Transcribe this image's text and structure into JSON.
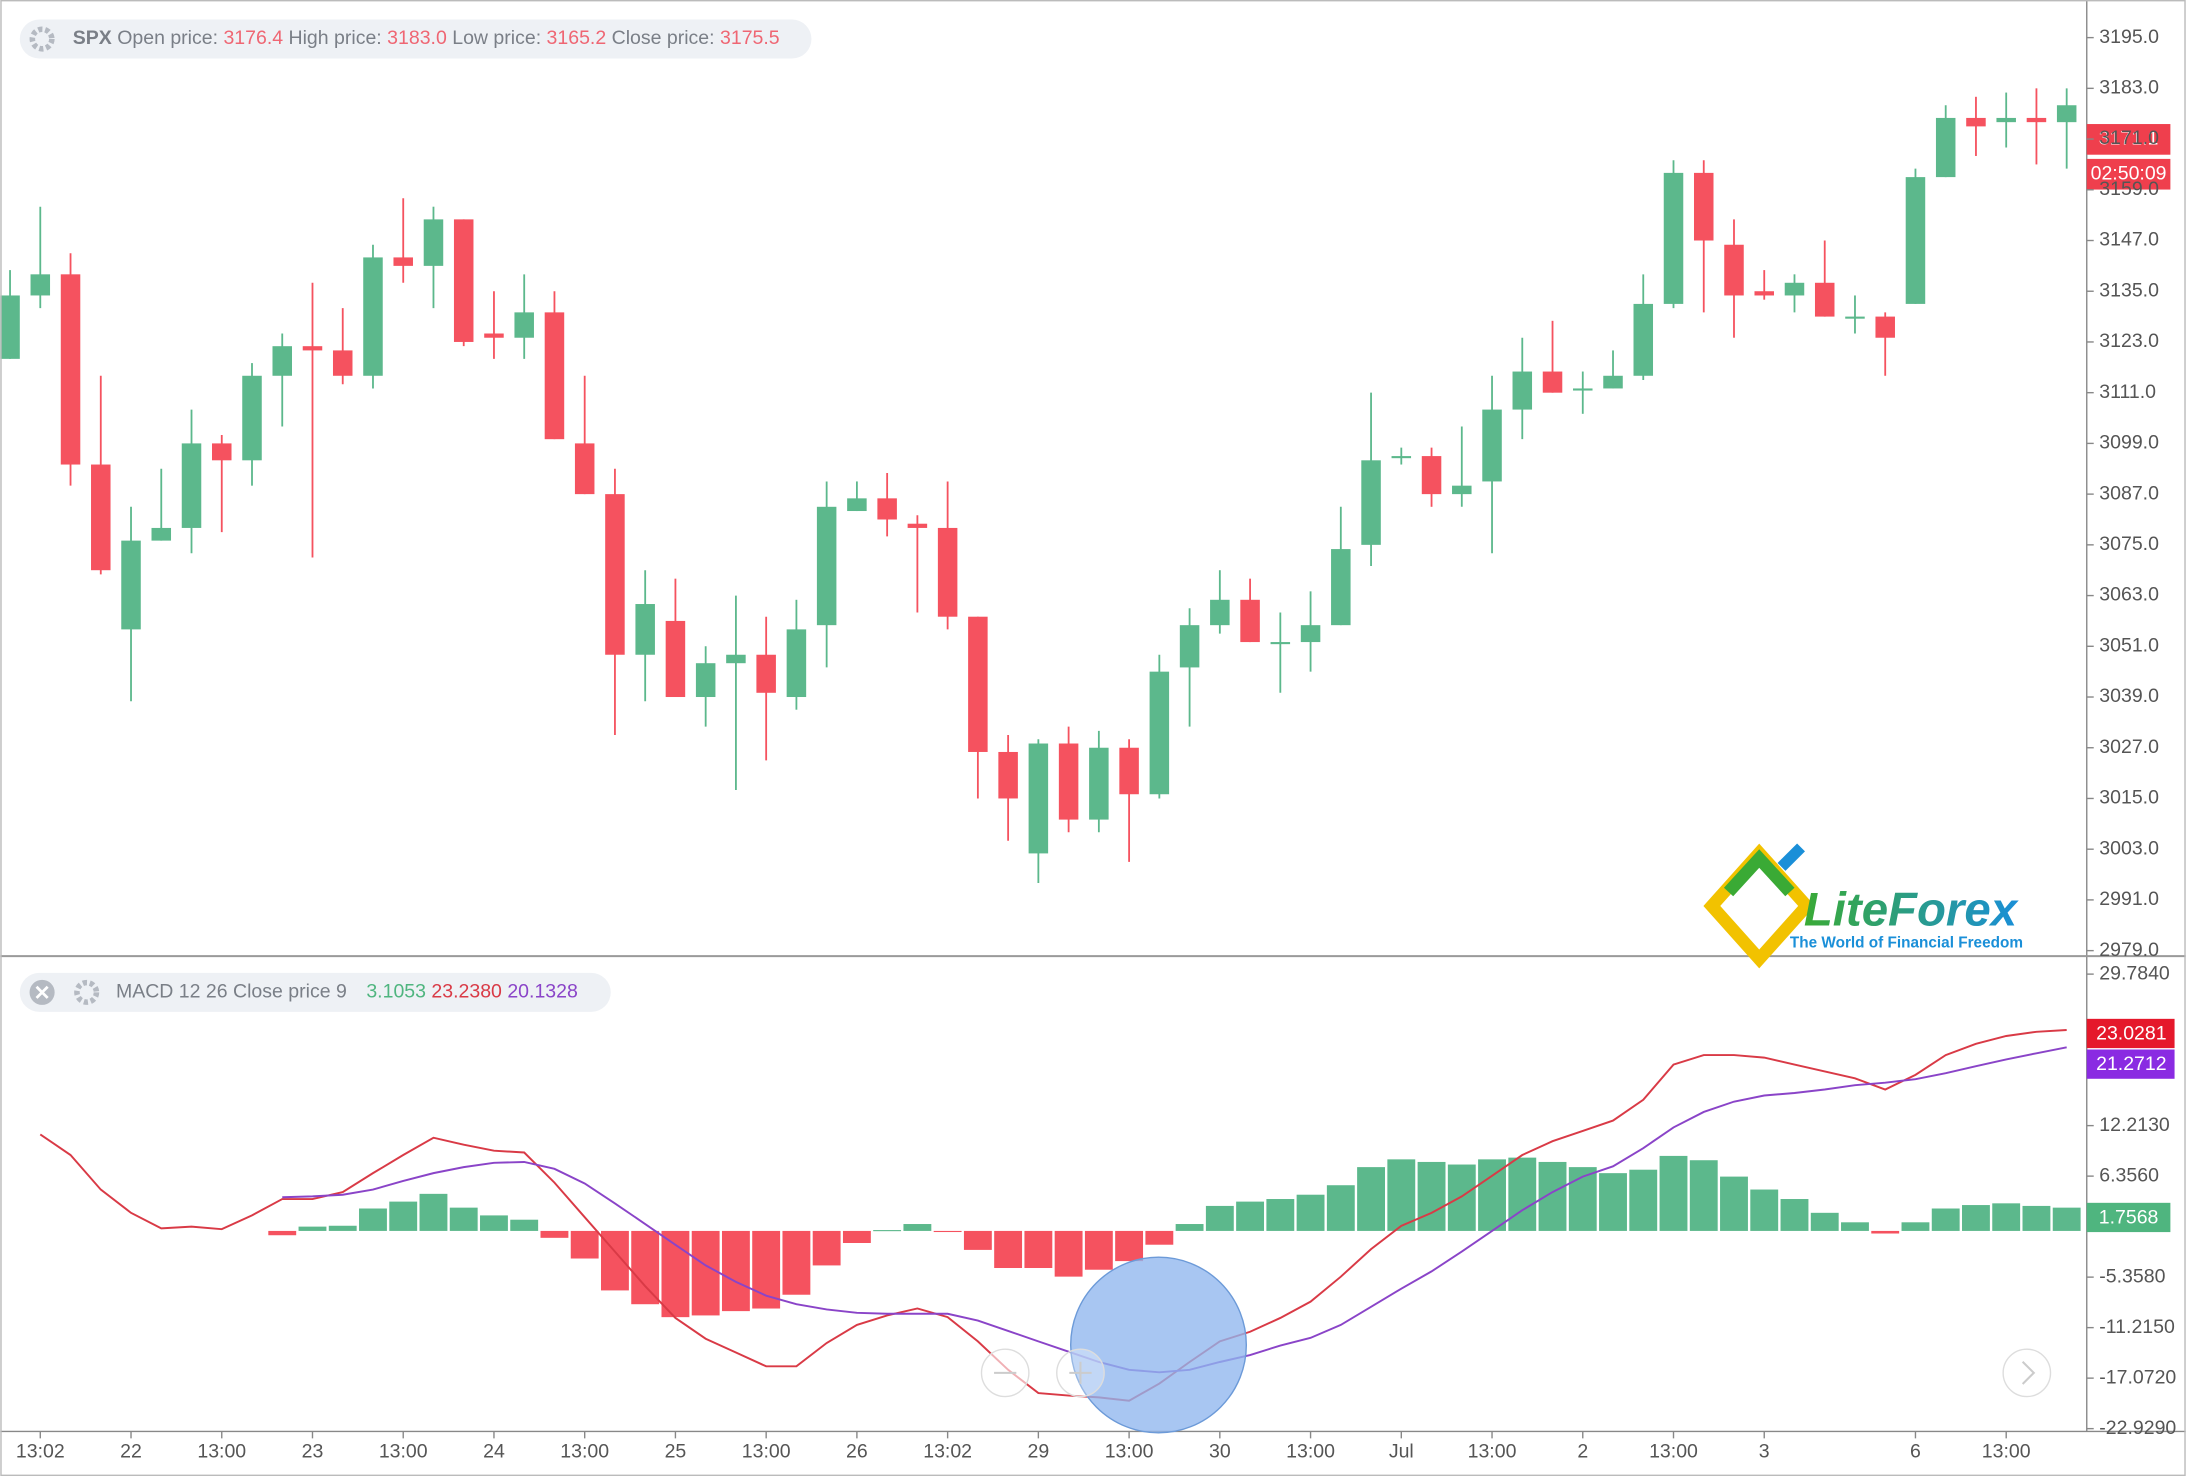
{
  "chart_data": [
    {
      "type": "candlestick",
      "categories": [
        null,
        "13:02",
        null,
        null,
        "22",
        null,
        null,
        "13:00",
        null,
        null,
        "23",
        null,
        null,
        "13:00",
        null,
        null,
        "24",
        null,
        null,
        "13:00",
        null,
        null,
        "25",
        null,
        null,
        "13:00",
        null,
        null,
        "26",
        null,
        null,
        "13:02",
        null,
        null,
        "29",
        null,
        null,
        "13:00",
        null,
        null,
        "30",
        null,
        null,
        "13:00",
        null,
        null,
        "Jul",
        null,
        null,
        "13:00",
        null,
        null,
        "2",
        null,
        null,
        "13:00",
        null,
        null,
        "3",
        null,
        null,
        null,
        null,
        "6",
        null,
        null,
        "13:00",
        null,
        null
      ],
      "open": [
        3119,
        3134,
        3139,
        3094,
        3055,
        3076,
        3079,
        3099,
        3095,
        3115,
        3122,
        3121,
        3115,
        3143,
        3141,
        3152,
        3125,
        3124,
        3130,
        3099,
        3087,
        3049,
        3057,
        3039,
        3047,
        3049,
        3039,
        3056,
        3083,
        3086,
        3080,
        3079,
        3058,
        3026,
        3002,
        3028,
        3010,
        3027,
        3016,
        3046,
        3056,
        3062,
        3052,
        3052,
        3056,
        3075,
        3096,
        3096,
        3087,
        3090,
        3107,
        3116,
        3112,
        3112,
        3115,
        3132,
        3163,
        3146,
        3135,
        3134,
        3137,
        3129,
        3129,
        3132,
        3162,
        3176,
        3175,
        3176,
        3175
      ],
      "high": [
        3140,
        3155,
        3144,
        3115,
        3084,
        3093,
        3107,
        3101,
        3118,
        3125,
        3137,
        3131,
        3146,
        3157,
        3155,
        3152,
        3135,
        3139,
        3135,
        3115,
        3093,
        3069,
        3067,
        3051,
        3063,
        3058,
        3062,
        3090,
        3090,
        3092,
        3082,
        3090,
        3058,
        3030,
        3029,
        3032,
        3031,
        3029,
        3049,
        3060,
        3069,
        3067,
        3059,
        3064,
        3084,
        3111,
        3098,
        3098,
        3103,
        3115,
        3124,
        3128,
        3116,
        3121,
        3139,
        3166,
        3166,
        3152,
        3140,
        3139,
        3147,
        3134,
        3130,
        3164,
        3179,
        3181,
        3182,
        3183,
        3183
      ],
      "low": [
        3119,
        3131,
        3089,
        3068,
        3038,
        3076,
        3073,
        3078,
        3089,
        3103,
        3072,
        3113,
        3112,
        3137,
        3131,
        3122,
        3119,
        3119,
        3100,
        3087,
        3030,
        3038,
        3039,
        3032,
        3017,
        3024,
        3036,
        3046,
        3083,
        3077,
        3059,
        3055,
        3015,
        3005,
        2995,
        3007,
        3007,
        3000,
        3015,
        3032,
        3054,
        3052,
        3040,
        3045,
        3056,
        3070,
        3094,
        3084,
        3084,
        3073,
        3100,
        3111,
        3106,
        3112,
        3114,
        3131,
        3130,
        3124,
        3133,
        3130,
        3129,
        3125,
        3115,
        3132,
        3162,
        3167,
        3169,
        3165,
        3164
      ],
      "close": [
        3134,
        3139,
        3094,
        3069,
        3076,
        3079,
        3099,
        3095,
        3115,
        3122,
        3121,
        3115,
        3143,
        3141,
        3152,
        3123,
        3124,
        3130,
        3100,
        3087,
        3049,
        3061,
        3039,
        3047,
        3049,
        3040,
        3055,
        3084,
        3086,
        3081,
        3079,
        3058,
        3026,
        3015,
        3028,
        3010,
        3027,
        3016,
        3045,
        3056,
        3062,
        3052,
        3052,
        3056,
        3074,
        3095,
        3096,
        3087,
        3089,
        3107,
        3116,
        3111,
        3112,
        3115,
        3132,
        3163,
        3147,
        3134,
        3134,
        3137,
        3129,
        3129,
        3124,
        3162,
        3176,
        3174,
        3176,
        3175,
        3179
      ],
      "up_color": "#5cb88c",
      "down_color": "#f5525f",
      "ylim": [
        2977.7,
        3203.9
      ],
      "yticks": [
        {
          "value": 2979,
          "label": "2979.0"
        },
        {
          "value": 2991,
          "label": "2991.0"
        },
        {
          "value": 3003,
          "label": "3003.0"
        },
        {
          "value": 3015,
          "label": "3015.0"
        },
        {
          "value": 3027,
          "label": "3027.0"
        },
        {
          "value": 3039,
          "label": "3039.0"
        },
        {
          "value": 3051,
          "label": "3051.0"
        },
        {
          "value": 3063,
          "label": "3063.0"
        },
        {
          "value": 3075,
          "label": "3075.0"
        },
        {
          "value": 3087,
          "label": "3087.0"
        },
        {
          "value": 3099,
          "label": "3099.0"
        },
        {
          "value": 3111,
          "label": "3111.0"
        },
        {
          "value": 3123,
          "label": "3123.0"
        },
        {
          "value": 3135,
          "label": "3135.0"
        },
        {
          "value": 3147,
          "label": "3147.0"
        },
        {
          "value": 3159,
          "label": "3159.0"
        },
        {
          "value": 3171,
          "label": "3171.0"
        },
        {
          "value": 3183,
          "label": "3183.0"
        },
        {
          "value": 3195,
          "label": "3195.0"
        }
      ]
    },
    {
      "type": "macd",
      "histogram": {
        "up_color": "#5cb88c",
        "down_color": "#f5525f",
        "values": [
          null,
          null,
          null,
          null,
          null,
          null,
          null,
          null,
          null,
          -0.5,
          0.5,
          0.6,
          2.6,
          3.4,
          4.3,
          2.7,
          1.8,
          1.3,
          -0.8,
          -3.2,
          -6.9,
          -8.5,
          -10.0,
          -9.8,
          -9.3,
          -9.0,
          -7.4,
          -4.0,
          -1.4,
          0.1,
          0.8,
          -0.1,
          -2.2,
          -4.3,
          -4.3,
          -5.3,
          -4.5,
          -3.5,
          -1.6,
          0.8,
          2.9,
          3.4,
          3.7,
          4.2,
          5.3,
          7.4,
          8.3,
          8.0,
          7.7,
          8.3,
          8.5,
          8.0,
          7.4,
          6.7,
          7.1,
          8.7,
          8.2,
          6.3,
          4.8,
          3.7,
          2.1,
          1.0,
          -0.3,
          1.0,
          2.6,
          3.0,
          3.2,
          2.9,
          2.7
        ]
      },
      "series": [
        {
          "color": "#d93a46",
          "values": [
            null,
            11.2,
            8.8,
            4.8,
            2.1,
            0.3,
            0.5,
            0.2,
            1.8,
            3.7,
            3.7,
            4.5,
            6.7,
            8.8,
            10.8,
            10.0,
            9.3,
            9.1,
            5.6,
            1.6,
            -2.4,
            -6.4,
            -10.1,
            -12.5,
            -14.1,
            -15.7,
            -15.7,
            -13.0,
            -10.9,
            -9.8,
            -9.0,
            -10.0,
            -12.8,
            -16.1,
            -18.8,
            -19.1,
            -19.3,
            -19.7,
            -17.7,
            -15.2,
            -12.8,
            -11.7,
            -10.1,
            -8.2,
            -5.3,
            -2.1,
            0.6,
            2.1,
            4.0,
            6.4,
            8.8,
            10.4,
            11.6,
            12.8,
            15.2,
            19.3,
            20.4,
            20.4,
            20.1,
            19.3,
            18.5,
            17.7,
            16.4,
            18.1,
            20.4,
            21.7,
            22.6,
            23.1,
            23.3
          ]
        },
        {
          "color": "#8a44c8",
          "values": [
            null,
            null,
            null,
            null,
            null,
            null,
            null,
            null,
            null,
            3.9,
            4.0,
            4.2,
            4.8,
            5.8,
            6.7,
            7.4,
            7.9,
            8.0,
            7.2,
            5.5,
            3.2,
            0.8,
            -1.6,
            -4.0,
            -5.9,
            -7.5,
            -8.5,
            -9.1,
            -9.5,
            -9.6,
            -9.6,
            -9.6,
            -10.4,
            -11.6,
            -12.8,
            -14.0,
            -15.2,
            -16.1,
            -16.4,
            -16.1,
            -15.2,
            -14.4,
            -13.3,
            -12.4,
            -10.9,
            -8.8,
            -6.7,
            -4.7,
            -2.4,
            0,
            2.4,
            4.5,
            6.3,
            7.5,
            9.6,
            12.0,
            13.8,
            15.0,
            15.7,
            16.0,
            16.4,
            16.9,
            17.2,
            17.6,
            18.3,
            19.1,
            19.9,
            20.6,
            21.3
          ]
        }
      ],
      "ylim": [
        -23.25,
        31.87
      ],
      "yticks": [
        {
          "value": -22.929,
          "label": "-22.9290"
        },
        {
          "value": -17.072,
          "label": "-17.0720"
        },
        {
          "value": -11.215,
          "label": "-11.2150"
        },
        {
          "value": -5.358,
          "label": "-5.3580"
        },
        {
          "value": 6.356,
          "label": "6.3560"
        },
        {
          "value": 12.213,
          "label": "12.2130"
        },
        {
          "value": 29.784,
          "label": "29.7840"
        }
      ]
    }
  ],
  "header": {
    "symbol": "SPX",
    "open_label": "Open price:",
    "open": "3176.4",
    "high_label": "High price:",
    "high": "3183.0",
    "low_label": "Low price:",
    "low": "3165.2",
    "close_label": "Close price:",
    "close": "3175.5"
  },
  "macd_header": {
    "title": "MACD 12 26 Close price 9",
    "histogram": "3.1053",
    "macd": "23.2380",
    "signal": "20.1328"
  },
  "badges": {
    "price": "3171.1",
    "countdown": "02:50:09",
    "macd": "23.0281",
    "signal": "21.2712",
    "histogram": "1.7568"
  },
  "logo": {
    "name": "LiteForex",
    "slogan": "The World of Financial Freedom"
  }
}
